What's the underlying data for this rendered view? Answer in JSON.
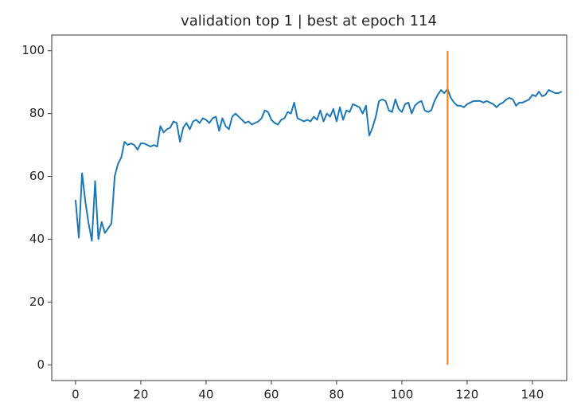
{
  "chart_data": {
    "type": "line",
    "title": "validation top 1 | best at epoch 114",
    "series": [
      {
        "color": "#1f77b4",
        "x": [
          0,
          1,
          2,
          3,
          4,
          5,
          6,
          7,
          8,
          9,
          10,
          11,
          12,
          13,
          14,
          15,
          16,
          17,
          18,
          19,
          20,
          21,
          22,
          23,
          24,
          25,
          26,
          27,
          28,
          29,
          30,
          31,
          32,
          33,
          34,
          35,
          36,
          37,
          38,
          39,
          40,
          41,
          42,
          43,
          44,
          45,
          46,
          47,
          48,
          49,
          50,
          51,
          52,
          53,
          54,
          55,
          56,
          57,
          58,
          59,
          60,
          61,
          62,
          63,
          64,
          65,
          66,
          67,
          68,
          69,
          70,
          71,
          72,
          73,
          74,
          75,
          76,
          77,
          78,
          79,
          80,
          81,
          82,
          83,
          84,
          85,
          86,
          87,
          88,
          89,
          90,
          91,
          92,
          93,
          94,
          95,
          96,
          97,
          98,
          99,
          100,
          101,
          102,
          103,
          104,
          105,
          106,
          107,
          108,
          109,
          110,
          111,
          112,
          113,
          114,
          115,
          116,
          117,
          118,
          119,
          120,
          121,
          122,
          123,
          124,
          125,
          126,
          127,
          128,
          129,
          130,
          131,
          132,
          133,
          134,
          135,
          136,
          137,
          138,
          139,
          140,
          141,
          142,
          143,
          144,
          145,
          146,
          147,
          148,
          149
        ],
        "values": [
          52.5,
          40.5,
          61,
          52,
          45,
          39.5,
          58.5,
          40,
          45.5,
          42,
          43.5,
          45,
          60,
          64,
          66,
          71,
          70,
          70.5,
          70,
          68.5,
          70.5,
          70.5,
          70,
          69.5,
          70,
          69.5,
          76,
          74,
          75,
          75.5,
          77.5,
          77,
          71,
          75.5,
          77,
          75,
          77.5,
          78,
          77,
          78.5,
          78,
          77,
          78.5,
          79,
          74.5,
          78.5,
          76,
          75,
          79,
          80,
          79,
          78,
          77,
          77.5,
          76.5,
          77,
          77.5,
          78.5,
          81,
          80.5,
          78,
          77,
          76.5,
          78,
          78.5,
          80.5,
          80,
          83.5,
          78.5,
          78,
          77.5,
          78,
          77.5,
          79,
          78,
          81,
          77.5,
          80,
          79,
          81.5,
          77.5,
          82,
          78,
          81,
          80.5,
          83,
          82.5,
          82,
          80,
          82.5,
          73,
          75.5,
          79,
          84,
          84.5,
          84,
          81,
          80.5,
          84.5,
          81.5,
          80.5,
          83,
          83.5,
          80,
          82.5,
          83.5,
          84,
          81,
          80.5,
          81,
          84,
          86,
          87.5,
          86.5,
          87.8,
          85,
          83.5,
          82.5,
          82.5,
          82,
          83,
          83.5,
          84,
          84,
          84,
          83.5,
          84,
          83.5,
          83,
          82,
          83,
          83.5,
          84.5,
          85,
          84.5,
          82.5,
          83.5,
          83.5,
          84,
          84.5,
          86,
          85.5,
          87,
          85.5,
          86,
          87.5,
          87,
          86.5,
          86.5,
          87
        ]
      },
      {
        "color": "#ff7f0e",
        "x": [
          114,
          114
        ],
        "values": [
          0,
          100
        ]
      }
    ],
    "xlim": [
      -7.3,
      150.5
    ],
    "xticks": [
      0,
      20,
      40,
      60,
      80,
      100,
      120,
      140
    ],
    "ylim": [
      -5,
      105
    ],
    "yticks": [
      0,
      20,
      40,
      60,
      80,
      100
    ]
  }
}
